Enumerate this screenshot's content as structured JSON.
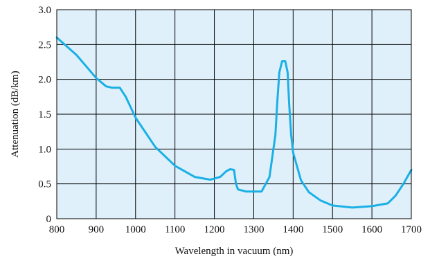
{
  "chart_data": {
    "type": "line",
    "xlabel": "Wavelength in vacuum (nm)",
    "ylabel": "Attenuation (dB/km)",
    "xlim": [
      800,
      1700
    ],
    "ylim": [
      0,
      3.0
    ],
    "x_ticks": [
      800,
      900,
      1000,
      1100,
      1200,
      1300,
      1400,
      1500,
      1600,
      1700
    ],
    "x_tick_labels": [
      "800",
      "900",
      "1000",
      "1100",
      "1200",
      "1300",
      "1400",
      "1500",
      "1600",
      "1700"
    ],
    "y_ticks": [
      0,
      0.5,
      1.0,
      1.5,
      2.0,
      2.5,
      3.0
    ],
    "y_tick_labels": [
      "0",
      "0.5",
      "1.0",
      "1.5",
      "2.0",
      "2.5",
      "3.0"
    ],
    "grid": true,
    "colors": {
      "plot_background": "#dff0fa",
      "line": "#1ab0e6",
      "grid": "#000000"
    },
    "series": [
      {
        "x": [
          800,
          850,
          900,
          925,
          940,
          960,
          975,
          1000,
          1050,
          1100,
          1150,
          1190,
          1215,
          1230,
          1240,
          1250,
          1255,
          1260,
          1280,
          1320,
          1340,
          1355,
          1360,
          1365,
          1372,
          1380,
          1386,
          1390,
          1395,
          1400,
          1420,
          1440,
          1470,
          1500,
          1550,
          1600,
          1640,
          1660,
          1680,
          1700
        ],
        "y": [
          2.6,
          2.35,
          2.02,
          1.9,
          1.88,
          1.88,
          1.75,
          1.45,
          1.03,
          0.76,
          0.6,
          0.56,
          0.6,
          0.68,
          0.71,
          0.7,
          0.5,
          0.42,
          0.39,
          0.39,
          0.6,
          1.2,
          1.7,
          2.1,
          2.26,
          2.26,
          2.1,
          1.65,
          1.2,
          0.95,
          0.55,
          0.38,
          0.26,
          0.19,
          0.16,
          0.18,
          0.22,
          0.33,
          0.5,
          0.7
        ]
      }
    ]
  }
}
